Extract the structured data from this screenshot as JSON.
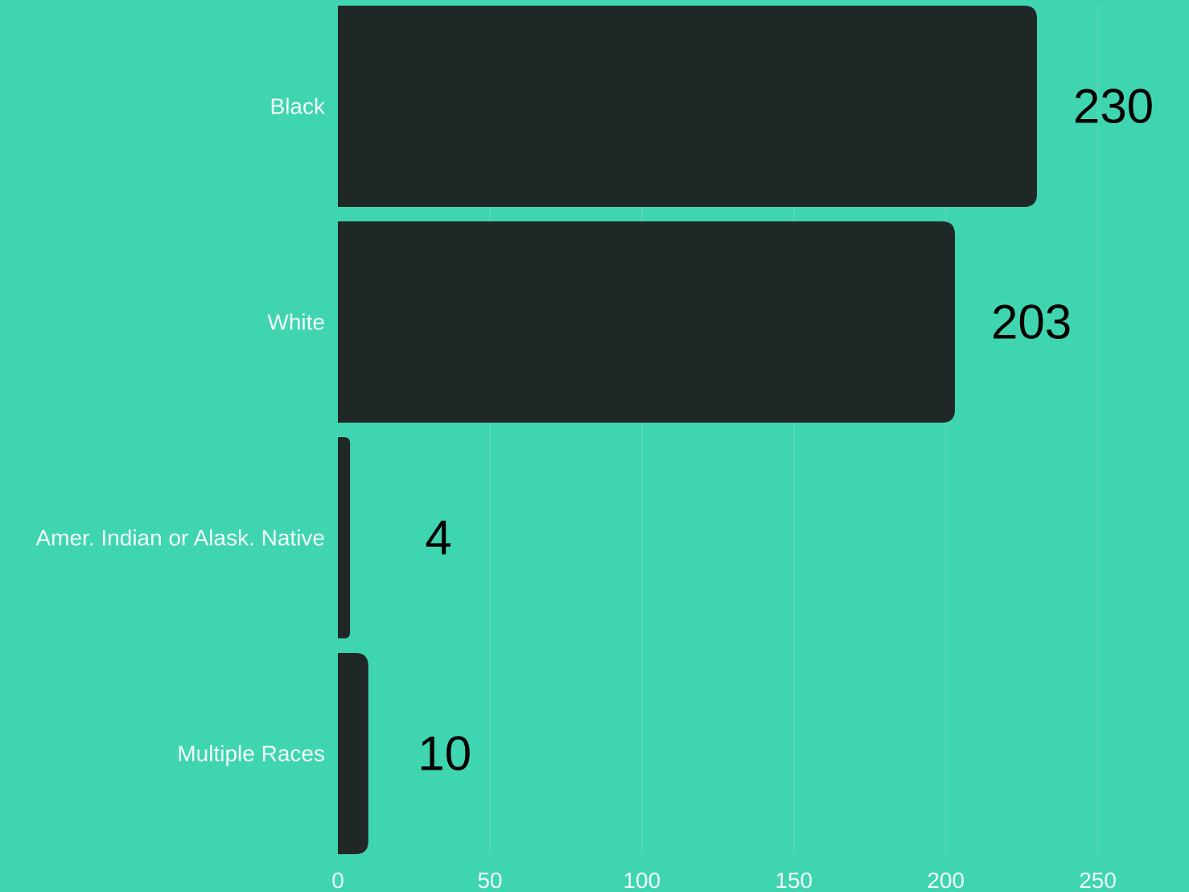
{
  "chart_data": {
    "type": "bar",
    "orientation": "horizontal",
    "categories": [
      "Black",
      "White",
      "Amer. Indian or Alask. Native",
      "Multiple Races"
    ],
    "values": [
      230,
      203,
      4,
      10
    ],
    "data_labels": [
      "230",
      "203",
      "4",
      "10"
    ],
    "title": "",
    "xlabel": "",
    "ylabel": "",
    "xlim": [
      0,
      270
    ],
    "xticks": [
      0,
      50,
      100,
      150,
      200,
      250
    ],
    "xtick_labels": [
      "0",
      "50",
      "100",
      "150",
      "200",
      "250"
    ],
    "grid": "vertical",
    "legend": "none"
  },
  "colors": {
    "background": "#3FD5B0",
    "bar": "#1F2727",
    "axis_text": "#F2FBF8",
    "data_label": "#000000",
    "grid": "#FFFFFF"
  }
}
